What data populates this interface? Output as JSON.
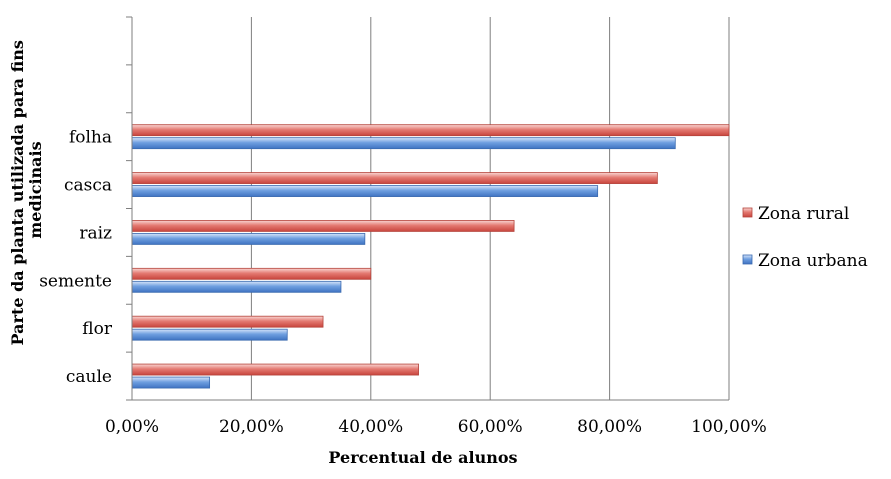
{
  "chart_data": {
    "type": "bar",
    "orientation": "horizontal",
    "categories": [
      "caule",
      "flor",
      "semente",
      "raiz",
      "casca",
      "folha"
    ],
    "series": [
      {
        "name": "Zona rural",
        "color": "#e0675f",
        "values": [
          48,
          32,
          40,
          64,
          88,
          100
        ]
      },
      {
        "name": "Zona urbana",
        "color": "#5b8fd6",
        "values": [
          13,
          26,
          35,
          39,
          78,
          91
        ]
      }
    ],
    "xlabel": "Percentual de alunos",
    "ylabel": "Parte da planta utilizada para fins medicinais",
    "xlim": [
      0,
      100
    ],
    "xticks": [
      "0,00%",
      "20,00%",
      "40,00%",
      "60,00%",
      "80,00%",
      "100,00%"
    ],
    "grid": "vertical",
    "legend_position": "right"
  }
}
